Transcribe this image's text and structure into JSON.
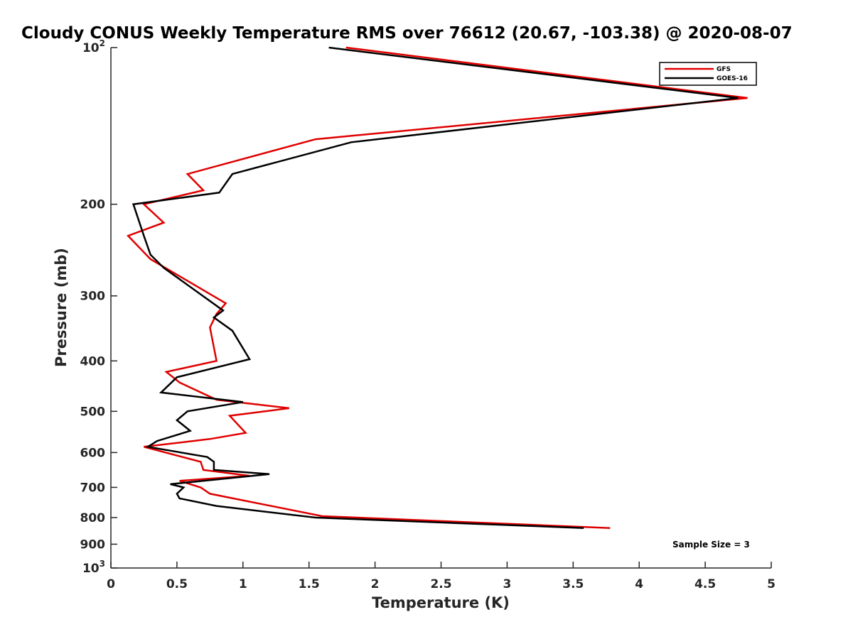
{
  "chart_data": {
    "type": "line",
    "title": "Cloudy CONUS Weekly Temperature RMS over 76612 (20.67, -103.38) @ 2020-08-07",
    "xlabel": "Temperature (K)",
    "ylabel": "Pressure (mb)",
    "xlim": [
      0,
      5
    ],
    "ylim": [
      100,
      1000
    ],
    "yscale": "log",
    "y_reversed": true,
    "xticks": [
      0,
      0.5,
      1,
      1.5,
      2,
      2.5,
      3,
      3.5,
      4,
      4.5,
      5
    ],
    "xtick_labels": [
      "0",
      "0.5",
      "1",
      "1.5",
      "2",
      "2.5",
      "3",
      "3.5",
      "4",
      "4.5",
      "5"
    ],
    "yticks": [
      {
        "value": 100,
        "base": "10",
        "exp": "2"
      },
      {
        "value": 200,
        "label": "200"
      },
      {
        "value": 300,
        "label": "300"
      },
      {
        "value": 400,
        "label": "400"
      },
      {
        "value": 500,
        "label": "500"
      },
      {
        "value": 600,
        "label": "600"
      },
      {
        "value": 700,
        "label": "700"
      },
      {
        "value": 800,
        "label": "800"
      },
      {
        "value": 900,
        "label": "900"
      },
      {
        "value": 1000,
        "base": "10",
        "exp": "3"
      }
    ],
    "legend_placement": "top-right",
    "annotation": "Sample Size = 3",
    "series": [
      {
        "name": "GFS",
        "color": "#e00000",
        "points": [
          [
            1.78,
            100
          ],
          [
            4.82,
            125
          ],
          [
            1.55,
            150
          ],
          [
            0.58,
            175
          ],
          [
            0.7,
            188
          ],
          [
            0.25,
            200
          ],
          [
            0.4,
            217
          ],
          [
            0.13,
            230
          ],
          [
            0.3,
            255
          ],
          [
            0.87,
            310
          ],
          [
            0.8,
            325
          ],
          [
            0.75,
            345
          ],
          [
            0.8,
            400
          ],
          [
            0.42,
            420
          ],
          [
            0.52,
            440
          ],
          [
            0.8,
            475
          ],
          [
            1.35,
            493
          ],
          [
            0.9,
            510
          ],
          [
            1.02,
            550
          ],
          [
            0.75,
            565
          ],
          [
            0.25,
            585
          ],
          [
            0.68,
            625
          ],
          [
            0.7,
            648
          ],
          [
            1.05,
            665
          ],
          [
            0.52,
            680
          ],
          [
            0.68,
            700
          ],
          [
            0.75,
            720
          ],
          [
            1.6,
            795
          ],
          [
            3.78,
            838
          ]
        ]
      },
      {
        "name": "GOES-16",
        "color": "#000000",
        "points": [
          [
            1.65,
            100
          ],
          [
            4.75,
            125
          ],
          [
            1.82,
            152
          ],
          [
            0.92,
            175
          ],
          [
            0.82,
            190
          ],
          [
            0.17,
            200
          ],
          [
            0.25,
            230
          ],
          [
            0.3,
            250
          ],
          [
            0.4,
            265
          ],
          [
            0.85,
            320
          ],
          [
            0.78,
            330
          ],
          [
            0.92,
            350
          ],
          [
            1.05,
            397
          ],
          [
            0.5,
            430
          ],
          [
            0.38,
            460
          ],
          [
            1.0,
            480
          ],
          [
            0.58,
            500
          ],
          [
            0.5,
            520
          ],
          [
            0.6,
            545
          ],
          [
            0.35,
            570
          ],
          [
            0.28,
            585
          ],
          [
            0.73,
            612
          ],
          [
            0.78,
            625
          ],
          [
            0.78,
            648
          ],
          [
            1.2,
            660
          ],
          [
            0.45,
            690
          ],
          [
            0.55,
            700
          ],
          [
            0.5,
            720
          ],
          [
            0.52,
            735
          ],
          [
            0.8,
            760
          ],
          [
            1.55,
            800
          ],
          [
            3.58,
            838
          ]
        ]
      }
    ]
  }
}
